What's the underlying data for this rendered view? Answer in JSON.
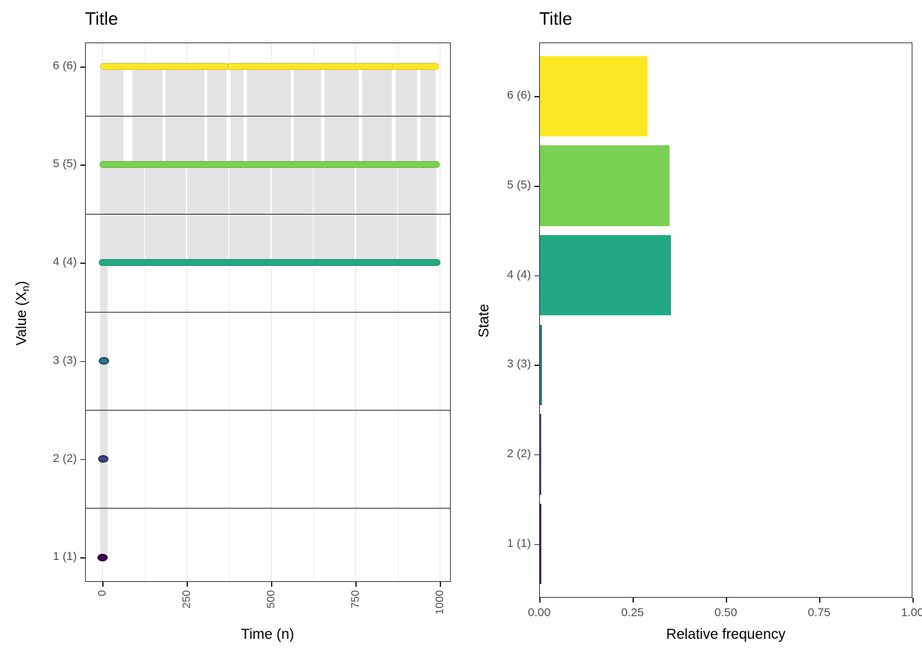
{
  "page": {
    "background": "#ffffff"
  },
  "left_chart": {
    "title": "Title",
    "xlabel": "Time (n)",
    "ylabel_main": "Value (X",
    "ylabel_sub": "n",
    "ylabel_end": ")"
  },
  "right_chart": {
    "title": "Title",
    "xlabel": "Relative frequency",
    "ylabel": "State"
  },
  "colors": {
    "tick_label": "#4d4d4d",
    "title": "#000000",
    "axis_title": "#000000",
    "panel_border": "#2b2b2b",
    "separator": "#1a1a1a",
    "gridline": "#e7e7e7",
    "trace": "#e4e4e4",
    "background": "#ffffff",
    "viridis_states": [
      "#440154",
      "#414487",
      "#2A788E",
      "#22A884",
      "#7AD151",
      "#FDE725"
    ]
  },
  "chart_data": [
    {
      "type": "scatter",
      "title": "Title",
      "xlabel": "Time (n)",
      "ylabel": "Value (X_n)",
      "xlim": [
        0,
        1000
      ],
      "x_ticks": [
        "0",
        "250",
        "500",
        "750",
        "1000"
      ],
      "x_tick_values": [
        0,
        250,
        500,
        750,
        1000
      ],
      "minor_grid_step": 125,
      "categories": [
        "1 (1)",
        "2 (2)",
        "3 (3)",
        "4 (4)",
        "5 (5)",
        "6 (6)"
      ],
      "state_colors": [
        "#440154",
        "#414487",
        "#2A788E",
        "#22A884",
        "#7AD151",
        "#FDE725"
      ],
      "occupied_rows": [
        {
          "state": 6,
          "t_start": 5,
          "t_end": 988,
          "gaps": [
            [
              368,
              380
            ],
            [
              858,
              868
            ]
          ]
        },
        {
          "state": 5,
          "t_start": 3,
          "t_end": 990,
          "gaps": []
        },
        {
          "state": 4,
          "t_start": 1,
          "t_end": 992,
          "gaps": []
        }
      ],
      "isolated_points": [
        {
          "state": 3,
          "t": 4
        },
        {
          "state": 2,
          "t": 3
        },
        {
          "state": 1,
          "t": 0
        }
      ],
      "transition_bands": [
        {
          "between": [
            5,
            6
          ],
          "t_start": 5,
          "t_end": 988,
          "white_gaps": [
            [
              63,
              90
            ],
            [
              178,
              188
            ],
            [
              303,
              312
            ],
            [
              368,
              380
            ],
            [
              418,
              428
            ],
            [
              558,
              568
            ],
            [
              648,
              658
            ],
            [
              760,
              771
            ],
            [
              858,
              870
            ],
            [
              933,
              943
            ]
          ]
        },
        {
          "between": [
            4,
            5
          ],
          "t_start": 3,
          "t_end": 990,
          "white_gaps": [
            [
              123,
              127
            ],
            [
              248,
              252
            ],
            [
              373,
              377
            ],
            [
              498,
              502
            ],
            [
              623,
              627
            ],
            [
              748,
              752
            ],
            [
              873,
              877
            ]
          ]
        }
      ],
      "initial_transient": {
        "t_start": 0,
        "t_end": 13,
        "state_low": 1,
        "state_high": 6
      },
      "separator_positions": [
        1.5,
        2.5,
        3.5,
        4.5,
        5.5
      ],
      "grid": "vertical light-grey major+minor",
      "legend": "none"
    },
    {
      "type": "bar",
      "orientation": "horizontal",
      "title": "Title",
      "xlabel": "Relative frequency",
      "ylabel": "State",
      "categories": [
        "1 (1)",
        "2 (2)",
        "3 (3)",
        "4 (4)",
        "5 (5)",
        "6 (6)"
      ],
      "values": [
        0.003,
        0.004,
        0.005,
        0.351,
        0.348,
        0.289
      ],
      "bar_colors": [
        "#440154",
        "#414487",
        "#2A788E",
        "#22A884",
        "#7AD151",
        "#FDE725"
      ],
      "x_ticks": [
        "0.00",
        "0.25",
        "0.50",
        "0.75",
        "1.00"
      ],
      "x_tick_values": [
        0,
        0.25,
        0.5,
        0.75,
        1.0
      ],
      "xlim": [
        0,
        1.0
      ],
      "grid": "none",
      "legend": "none"
    }
  ]
}
